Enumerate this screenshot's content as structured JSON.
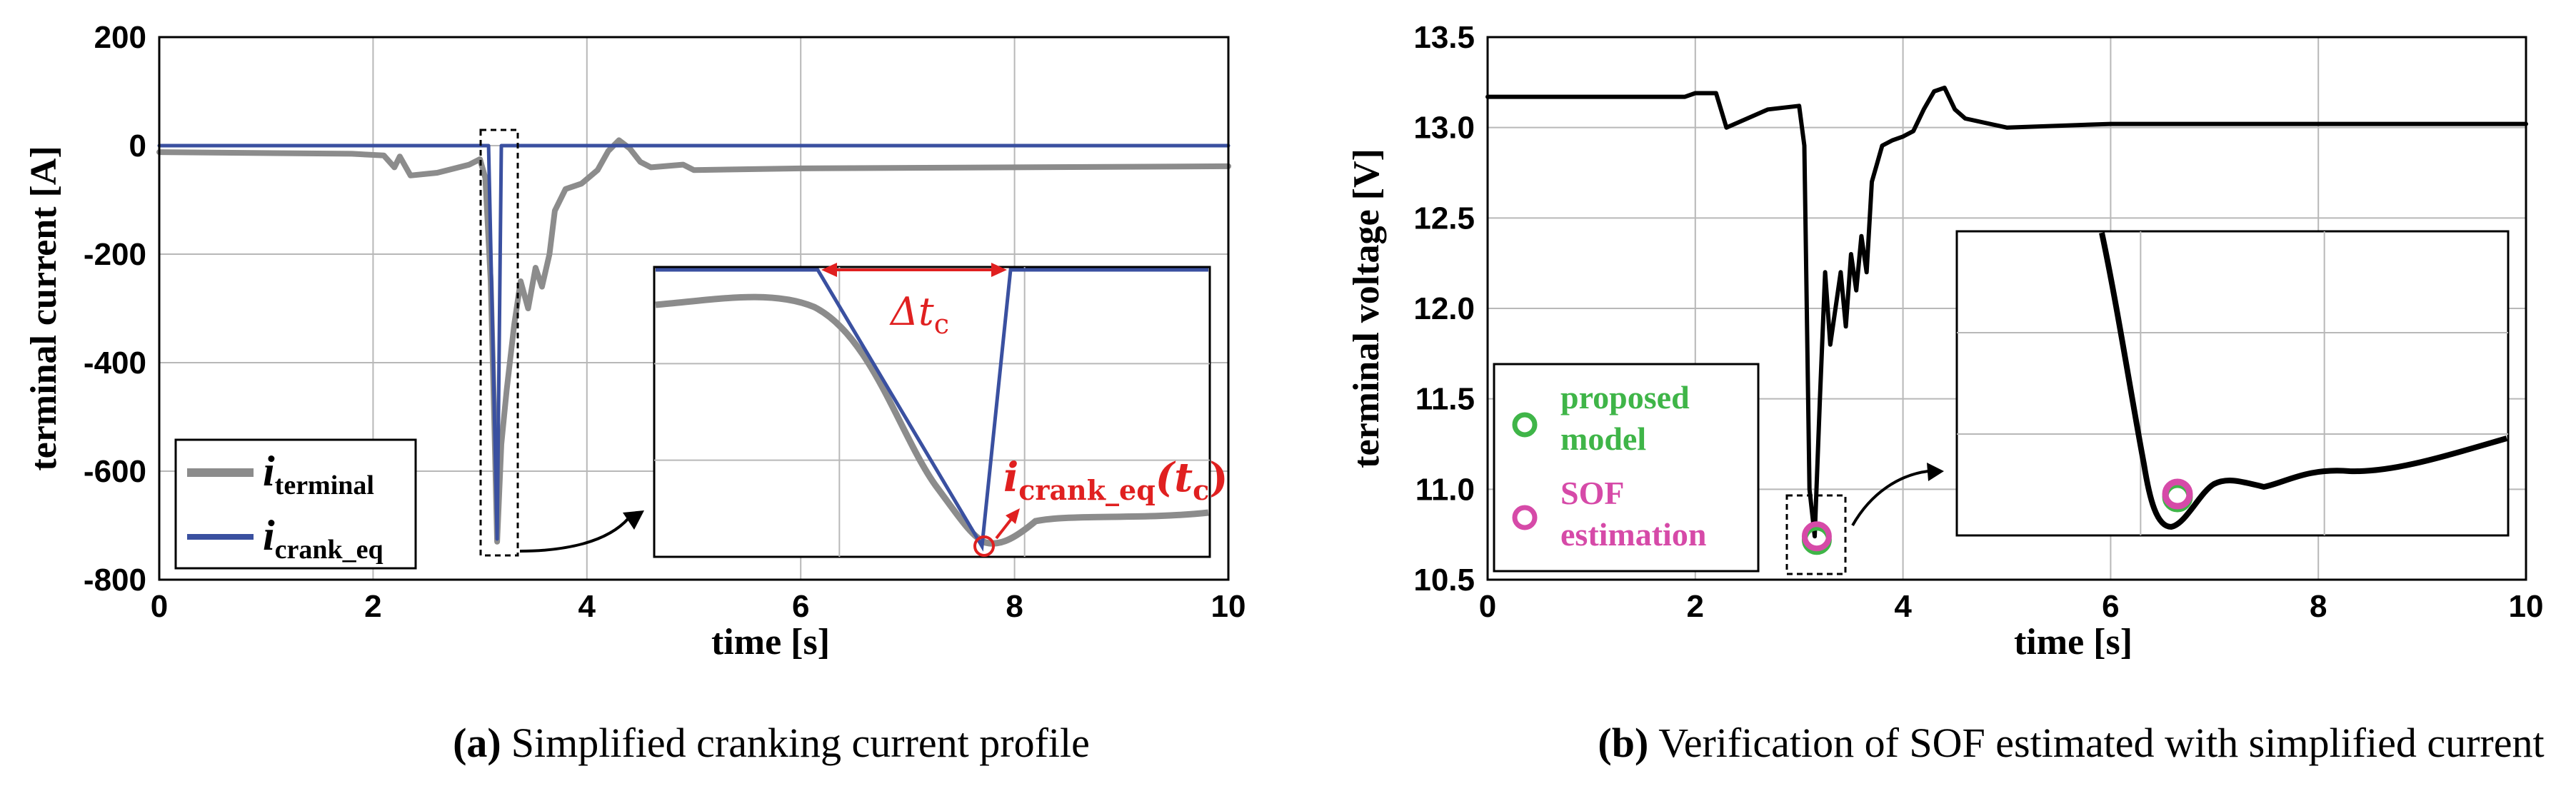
{
  "chart_data": [
    {
      "type": "line",
      "caption_letter": "(a)",
      "caption_text": "Simplified cranking current profile",
      "xlabel": "time [s]",
      "ylabel": "terminal current [A]",
      "xlim": [
        0,
        10
      ],
      "ylim": [
        -800,
        200
      ],
      "xticks": [
        0,
        2,
        4,
        6,
        8,
        10
      ],
      "yticks": [
        200,
        0,
        -200,
        -400,
        -600,
        -800
      ],
      "grid": true,
      "legend_placement": "bottom-left",
      "colors": {
        "i_terminal": "#8c8c8c",
        "i_crank_eq": "#3a50a0",
        "annotation": "#e02020"
      },
      "series": [
        {
          "name": "i_terminal",
          "legend_main": "i",
          "legend_sub": "terminal",
          "x": [
            0,
            1.8,
            2.1,
            2.2,
            2.25,
            2.35,
            2.6,
            2.9,
            3.0,
            3.05,
            3.1,
            3.13,
            3.16,
            3.2,
            3.25,
            3.32,
            3.38,
            3.45,
            3.52,
            3.58,
            3.65,
            3.7,
            3.8,
            3.95,
            4.1,
            4.2,
            4.3,
            4.4,
            4.5,
            4.6,
            4.9,
            5.0,
            6.0,
            8.0,
            10.0
          ],
          "y": [
            -12,
            -15,
            -18,
            -40,
            -20,
            -55,
            -50,
            -35,
            -25,
            -60,
            -250,
            -480,
            -730,
            -550,
            -450,
            -330,
            -250,
            -300,
            -225,
            -260,
            -200,
            -120,
            -80,
            -70,
            -45,
            -10,
            10,
            -5,
            -30,
            -40,
            -35,
            -45,
            -42,
            -40,
            -38
          ]
        },
        {
          "name": "i_crank_eq",
          "legend_main": "i",
          "legend_sub": "crank_eq",
          "x": [
            0,
            3.08,
            3.16,
            3.2,
            10
          ],
          "y": [
            0,
            0,
            -725,
            0,
            0
          ]
        }
      ],
      "inset": {
        "annotations": {
          "delta_main": "Δt",
          "delta_sub": "c",
          "point_main": "i",
          "point_sub": "crank_eq",
          "point_arg_open": "(t",
          "point_arg_sub": "c",
          "point_arg_close": ")"
        }
      }
    },
    {
      "type": "line",
      "caption_letter": "(b)",
      "caption_text": "Verification of SOF estimated with simplified current",
      "xlabel": "time [s]",
      "ylabel": "terminal voltage [V]",
      "xlim": [
        0,
        10
      ],
      "ylim": [
        10.5,
        13.5
      ],
      "xticks": [
        0,
        2,
        4,
        6,
        8,
        10
      ],
      "yticks": [
        13.5,
        13.0,
        12.5,
        12.0,
        11.5,
        11.0,
        10.5
      ],
      "ytick_labels": [
        "13.5",
        "13.0",
        "12.5",
        "12.0",
        "11.5",
        "11.0",
        "10.5"
      ],
      "grid": true,
      "legend_placement": "bottom-left",
      "colors": {
        "voltage": "#000000",
        "proposed": "#3fb548",
        "sof": "#d64aa8"
      },
      "series": [
        {
          "name": "",
          "x": [
            0,
            1.9,
            2.0,
            2.2,
            2.3,
            2.5,
            2.7,
            3.0,
            3.05,
            3.1,
            3.15,
            3.2,
            3.25,
            3.3,
            3.35,
            3.4,
            3.45,
            3.5,
            3.55,
            3.6,
            3.65,
            3.7,
            3.75,
            3.8,
            3.9,
            4.0,
            4.1,
            4.2,
            4.3,
            4.4,
            4.5,
            4.6,
            5.0,
            6.0,
            8.0,
            10.0
          ],
          "y": [
            13.17,
            13.17,
            13.19,
            13.19,
            13.0,
            13.05,
            13.1,
            13.12,
            12.9,
            11.0,
            10.74,
            11.5,
            12.2,
            11.8,
            12.0,
            12.2,
            11.9,
            12.3,
            12.1,
            12.4,
            12.2,
            12.7,
            12.8,
            12.9,
            12.93,
            12.95,
            12.98,
            13.1,
            13.2,
            13.22,
            13.1,
            13.05,
            13.0,
            13.02,
            13.02,
            13.02
          ]
        }
      ],
      "markers": [
        {
          "label": "proposed model",
          "x": 3.17,
          "y": 10.72
        },
        {
          "label": "SOF estimation",
          "x": 3.17,
          "y": 10.74
        }
      ],
      "legend": [
        {
          "line1": "proposed",
          "line2": "model"
        },
        {
          "line1": "SOF",
          "line2": "estimation"
        }
      ]
    }
  ]
}
